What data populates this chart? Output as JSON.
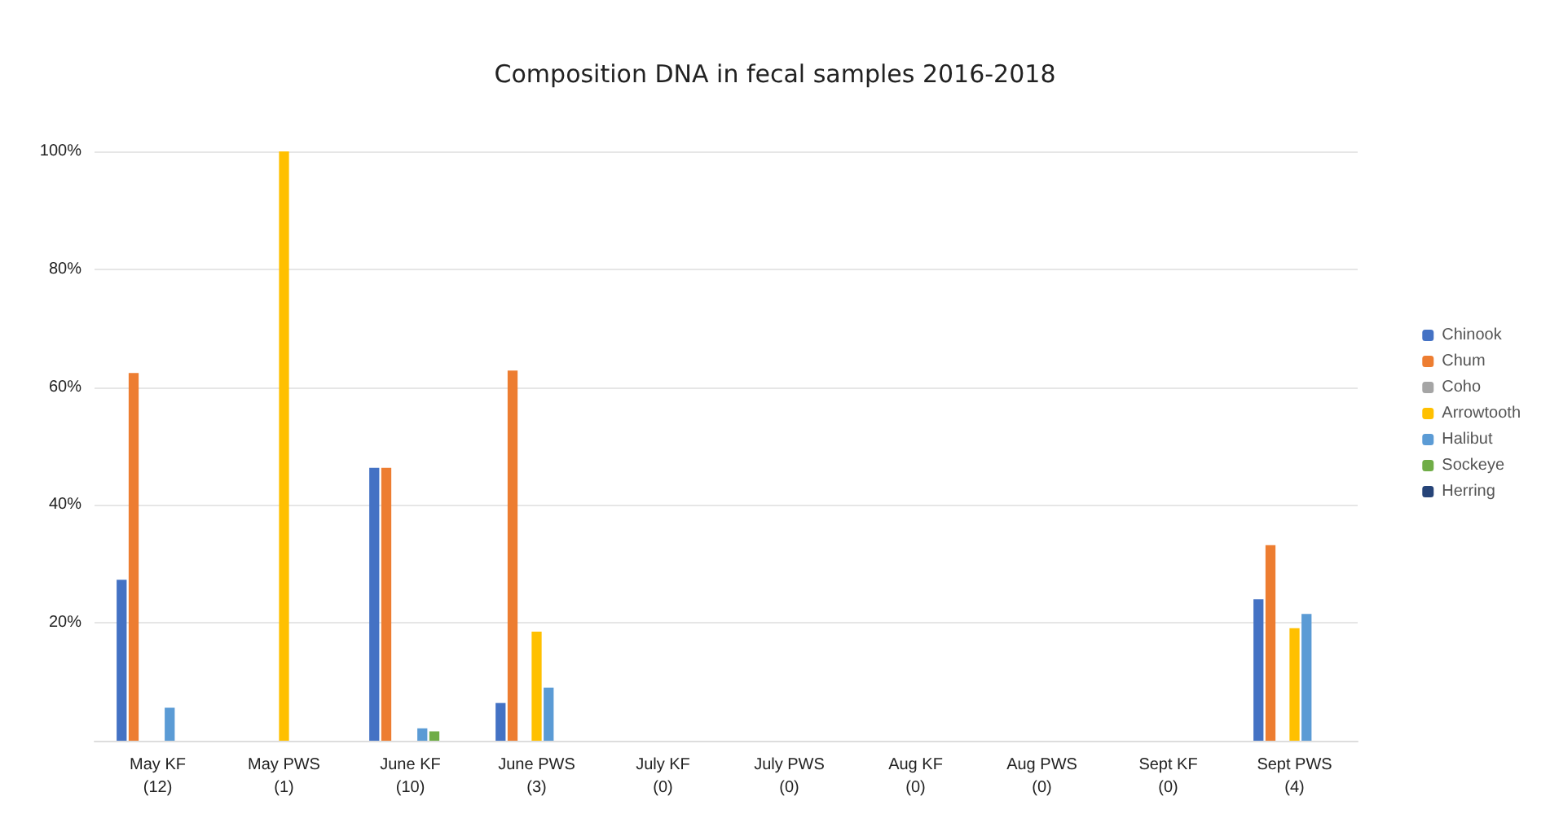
{
  "chart_data": {
    "type": "bar",
    "title": "Composition DNA in fecal samples 2016-2018",
    "categories": [
      "May KF\n(12)",
      "May PWS\n(1)",
      "June KF\n(10)",
      "June PWS\n(3)",
      "July KF\n(0)",
      "July PWS\n(0)",
      "Aug KF\n(0)",
      "Aug PWS\n(0)",
      "Sept KF\n(0)",
      "Sept PWS\n(4)"
    ],
    "series": [
      {
        "name": "Chinook",
        "color": "#4472c4",
        "values": [
          27.3,
          null,
          46.3,
          6.4,
          null,
          null,
          null,
          null,
          null,
          24
        ]
      },
      {
        "name": "Chum",
        "color": "#ed7d31",
        "values": [
          62.4,
          null,
          46.3,
          62.8,
          null,
          null,
          null,
          null,
          null,
          33.2
        ]
      },
      {
        "name": "Coho",
        "color": "#a5a5a5",
        "values": [
          null,
          null,
          null,
          null,
          null,
          null,
          null,
          null,
          null,
          null
        ]
      },
      {
        "name": "Arrowtooth",
        "color": "#ffc000",
        "values": [
          null,
          100,
          null,
          18.5,
          null,
          null,
          null,
          null,
          null,
          19.1
        ]
      },
      {
        "name": "Halibut",
        "color": "#5b9bd5",
        "values": [
          5.6,
          null,
          2.1,
          9,
          null,
          null,
          null,
          null,
          null,
          21.5
        ]
      },
      {
        "name": "Sockeye",
        "color": "#70ad47",
        "values": [
          null,
          null,
          1.6,
          null,
          null,
          null,
          null,
          null,
          null,
          null
        ]
      },
      {
        "name": "Herring",
        "color": "#264478",
        "values": [
          null,
          null,
          null,
          null,
          null,
          null,
          null,
          null,
          null,
          null
        ]
      }
    ],
    "ylim": [
      0,
      100
    ],
    "yticks": [
      {
        "value": 0,
        "label": null
      },
      {
        "value": 20,
        "label": "20%"
      },
      {
        "value": 40,
        "label": "40%"
      },
      {
        "value": 60,
        "label": "60%"
      },
      {
        "value": 80,
        "label": "80%"
      },
      {
        "value": 100,
        "label": "100%"
      }
    ],
    "grid": "y",
    "legend": "right"
  }
}
